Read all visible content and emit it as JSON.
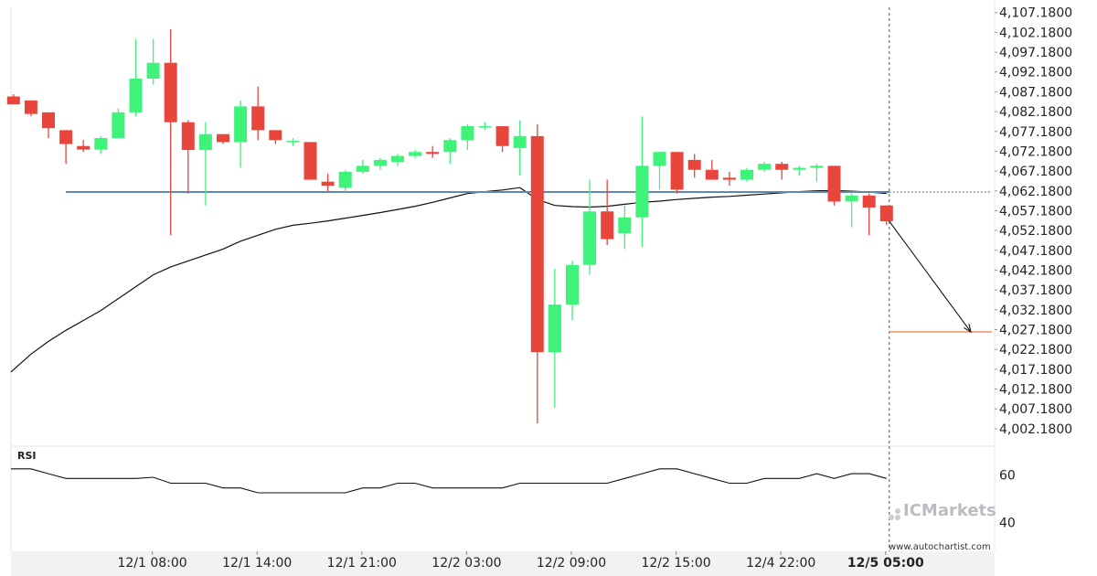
{
  "chart_data": {
    "type": "candlestick",
    "y_ticks": [
      "4,107.1800",
      "4,102.1800",
      "4,097.1800",
      "4,092.1800",
      "4,087.1800",
      "4,082.1800",
      "4,077.1800",
      "4,072.1800",
      "4,067.1800",
      "4,062.1800",
      "4,057.1800",
      "4,052.1800",
      "4,047.1800",
      "4,042.1800",
      "4,037.1800",
      "4,032.1800",
      "4,027.1800",
      "4,022.1800",
      "4,017.1800",
      "4,012.1800",
      "4,007.1800",
      "4,002.1800"
    ],
    "y_tick_values": [
      4107.18,
      4102.18,
      4097.18,
      4092.18,
      4087.18,
      4082.18,
      4077.18,
      4072.18,
      4067.18,
      4062.18,
      4057.18,
      4052.18,
      4047.18,
      4042.18,
      4037.18,
      4032.18,
      4027.18,
      4022.18,
      4017.18,
      4012.18,
      4007.18,
      4002.18
    ],
    "ylim": [
      3998.0,
      4108.5
    ],
    "x_ticks": [
      {
        "label": "12/1 08:00",
        "index": 8,
        "bold": false
      },
      {
        "label": "12/1 14:00",
        "index": 14,
        "bold": false
      },
      {
        "label": "12/1 21:00",
        "index": 20,
        "bold": false
      },
      {
        "label": "12/2 03:00",
        "index": 26,
        "bold": false
      },
      {
        "label": "12/2 09:00",
        "index": 32,
        "bold": false
      },
      {
        "label": "12/2 15:00",
        "index": 38,
        "bold": false
      },
      {
        "label": "12/4 22:00",
        "index": 44,
        "bold": false
      },
      {
        "label": "12/5 05:00",
        "index": 50,
        "bold": true
      }
    ],
    "candles": [
      {
        "o": 4086.0,
        "h": 4086.6,
        "l": 4084.0,
        "c": 4084.0
      },
      {
        "o": 4085.0,
        "h": 4085.0,
        "l": 4081.0,
        "c": 4081.6
      },
      {
        "o": 4082.0,
        "h": 4082.0,
        "l": 4075.5,
        "c": 4078.0
      },
      {
        "o": 4077.5,
        "h": 4077.5,
        "l": 4069.0,
        "c": 4074.0
      },
      {
        "o": 4073.5,
        "h": 4075.0,
        "l": 4072.0,
        "c": 4072.6
      },
      {
        "o": 4072.6,
        "h": 4076.0,
        "l": 4071.5,
        "c": 4075.5
      },
      {
        "o": 4075.5,
        "h": 4083.0,
        "l": 4075.5,
        "c": 4082.0
      },
      {
        "o": 4082.0,
        "h": 4100.5,
        "l": 4081.0,
        "c": 4090.5
      },
      {
        "o": 4090.5,
        "h": 4100.5,
        "l": 4089.0,
        "c": 4094.5
      },
      {
        "o": 4094.5,
        "h": 4103.0,
        "l": 4051.0,
        "c": 4079.5
      },
      {
        "o": 4079.5,
        "h": 4080.0,
        "l": 4061.5,
        "c": 4072.5
      },
      {
        "o": 4072.5,
        "h": 4079.5,
        "l": 4058.5,
        "c": 4076.5
      },
      {
        "o": 4076.5,
        "h": 4076.5,
        "l": 4074.0,
        "c": 4074.5
      },
      {
        "o": 4074.5,
        "h": 4085.0,
        "l": 4068.0,
        "c": 4083.5
      },
      {
        "o": 4083.5,
        "h": 4088.5,
        "l": 4075.0,
        "c": 4077.5
      },
      {
        "o": 4077.5,
        "h": 4077.5,
        "l": 4074.0,
        "c": 4075.0
      },
      {
        "o": 4074.5,
        "h": 4075.5,
        "l": 4073.5,
        "c": 4074.8
      },
      {
        "o": 4074.5,
        "h": 4074.5,
        "l": 4065.0,
        "c": 4065.0
      },
      {
        "o": 4064.5,
        "h": 4066.5,
        "l": 4062.0,
        "c": 4063.5
      },
      {
        "o": 4063.0,
        "h": 4067.5,
        "l": 4062.0,
        "c": 4067.0
      },
      {
        "o": 4067.0,
        "h": 4070.0,
        "l": 4066.5,
        "c": 4068.5
      },
      {
        "o": 4068.5,
        "h": 4070.5,
        "l": 4067.5,
        "c": 4070.0
      },
      {
        "o": 4069.5,
        "h": 4071.5,
        "l": 4068.5,
        "c": 4071.0
      },
      {
        "o": 4071.0,
        "h": 4072.5,
        "l": 4070.5,
        "c": 4072.0
      },
      {
        "o": 4072.0,
        "h": 4073.5,
        "l": 4070.5,
        "c": 4071.5
      },
      {
        "o": 4072.0,
        "h": 4075.5,
        "l": 4069.0,
        "c": 4075.0
      },
      {
        "o": 4075.0,
        "h": 4079.0,
        "l": 4072.5,
        "c": 4078.5
      },
      {
        "o": 4078.5,
        "h": 4079.5,
        "l": 4077.5,
        "c": 4078.5
      },
      {
        "o": 4078.5,
        "h": 4078.5,
        "l": 4072.0,
        "c": 4073.5
      },
      {
        "o": 4073.0,
        "h": 4080.0,
        "l": 4066.0,
        "c": 4076.0
      },
      {
        "o": 4076.0,
        "h": 4079.0,
        "l": 4003.5,
        "c": 4021.5
      },
      {
        "o": 4021.5,
        "h": 4042.5,
        "l": 4007.5,
        "c": 4033.5
      },
      {
        "o": 4033.5,
        "h": 4044.5,
        "l": 4029.5,
        "c": 4043.5
      },
      {
        "o": 4043.5,
        "h": 4065.0,
        "l": 4041.0,
        "c": 4057.0
      },
      {
        "o": 4057.0,
        "h": 4065.0,
        "l": 4048.5,
        "c": 4050.0
      },
      {
        "o": 4051.5,
        "h": 4058.5,
        "l": 4047.5,
        "c": 4055.5
      },
      {
        "o": 4055.5,
        "h": 4081.0,
        "l": 4048.0,
        "c": 4068.5
      },
      {
        "o": 4068.5,
        "h": 4072.0,
        "l": 4062.5,
        "c": 4072.0
      },
      {
        "o": 4072.0,
        "h": 4072.0,
        "l": 4061.5,
        "c": 4062.5
      },
      {
        "o": 4070.0,
        "h": 4071.5,
        "l": 4065.5,
        "c": 4067.5
      },
      {
        "o": 4067.5,
        "h": 4070.0,
        "l": 4065.0,
        "c": 4065.0
      },
      {
        "o": 4065.5,
        "h": 4067.0,
        "l": 4063.5,
        "c": 4065.0
      },
      {
        "o": 4065.0,
        "h": 4068.0,
        "l": 4064.5,
        "c": 4067.5
      },
      {
        "o": 4067.5,
        "h": 4069.5,
        "l": 4067.0,
        "c": 4069.0
      },
      {
        "o": 4069.0,
        "h": 4069.5,
        "l": 4065.0,
        "c": 4067.5
      },
      {
        "o": 4067.5,
        "h": 4068.5,
        "l": 4066.0,
        "c": 4068.0
      },
      {
        "o": 4068.0,
        "h": 4069.0,
        "l": 4064.5,
        "c": 4068.5
      },
      {
        "o": 4068.5,
        "h": 4068.5,
        "l": 4058.5,
        "c": 4059.5
      },
      {
        "o": 4059.5,
        "h": 4061.5,
        "l": 4053.0,
        "c": 4061.0
      },
      {
        "o": 4061.0,
        "h": 4061.5,
        "l": 4051.0,
        "c": 4058.0
      },
      {
        "o": 4058.5,
        "h": 4058.5,
        "l": 4053.5,
        "c": 4054.5
      }
    ],
    "moving_average": [
      4016.5,
      4021.0,
      4024.2,
      4027.0,
      4029.5,
      4032.0,
      4035.0,
      4038.0,
      4041.0,
      4043.0,
      4044.5,
      4046.0,
      4047.5,
      4049.5,
      4051.0,
      4052.5,
      4053.5,
      4054.0,
      4054.6,
      4055.3,
      4056.0,
      4056.7,
      4057.5,
      4058.3,
      4059.3,
      4060.4,
      4061.5,
      4062.0,
      4062.4,
      4063.0,
      4060.0,
      4058.5,
      4058.2,
      4058.1,
      4058.3,
      4058.8,
      4059.3,
      4059.6,
      4060.0,
      4060.3,
      4060.6,
      4060.8,
      4061.1,
      4061.4,
      4061.7,
      4062.0,
      4062.2,
      4062.3,
      4062.1,
      4061.9,
      4061.5
    ],
    "resistance_level": 4061.9,
    "target_level": 4026.6,
    "resistance_color": "#5f8ab0",
    "target_color": "#f07b3f",
    "bull_color": "#3ff27a",
    "bear_color": "#e8453c",
    "rsi": {
      "label": "RSI",
      "ticks": [
        {
          "label": "60",
          "value": 60
        },
        {
          "label": "40",
          "value": 40
        }
      ],
      "range": [
        28,
        72
      ],
      "values": [
        62.5,
        62.5,
        60.5,
        58.5,
        58.5,
        58.5,
        58.5,
        58.5,
        59.0,
        56.5,
        56.5,
        56.5,
        54.5,
        54.5,
        52.5,
        52.5,
        52.5,
        52.5,
        52.5,
        52.5,
        54.5,
        54.5,
        56.5,
        56.5,
        54.5,
        54.5,
        54.5,
        54.5,
        54.5,
        56.5,
        56.5,
        56.5,
        56.5,
        56.5,
        56.5,
        58.5,
        60.5,
        62.5,
        62.5,
        60.5,
        58.5,
        56.5,
        56.5,
        58.5,
        58.5,
        58.5,
        60.5,
        58.5,
        60.5,
        60.5,
        58.5
      ]
    }
  },
  "branding": {
    "name": "ICMarkets",
    "url": "www.autochartist.com"
  }
}
